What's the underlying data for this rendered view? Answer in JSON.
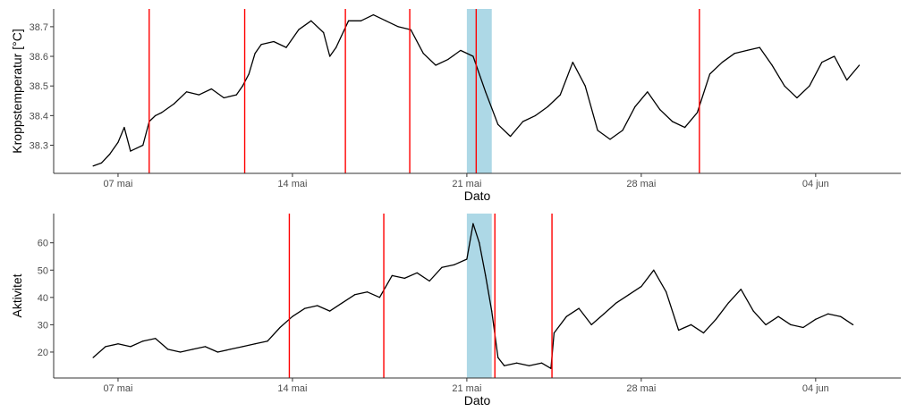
{
  "colors": {
    "series": "#000000",
    "event_line": "#ff0000",
    "highlight": "#add8e6",
    "axis": "#333333",
    "tick_text": "#4d4d4d",
    "background": "#ffffff"
  },
  "chart_data": [
    {
      "type": "line",
      "xlabel": "Dato",
      "ylabel": "Kroppstemperatur [°C]",
      "x_ticks": [
        "2024-05-07",
        "2024-05-14",
        "2024-05-21",
        "2024-05-28",
        "2024-06-04"
      ],
      "x_tick_labels": [
        "07 mai",
        "14 mai",
        "21 mai",
        "28 mai",
        "04 jun"
      ],
      "xlim": [
        "2024-05-04T10:00",
        "2024-06-07T10:00"
      ],
      "y_ticks": [
        38.3,
        38.4,
        38.5,
        38.6,
        38.7
      ],
      "ylim": [
        38.205,
        38.76
      ],
      "grid": false,
      "legend": "none",
      "highlight": [
        "2024-05-21T00:00",
        "2024-05-22T00:00"
      ],
      "event_lines": [
        "2024-05-08T06:00",
        "2024-05-12T02:00",
        "2024-05-16T03:00",
        "2024-05-18T17:00",
        "2024-05-21T09:00",
        "2024-05-30T08:00"
      ],
      "series": [
        {
          "x": [
            "2024-05-06T00:00",
            "2024-05-06T08:00",
            "2024-05-06T16:00",
            "2024-05-07T00:00",
            "2024-05-07T06:00",
            "2024-05-07T12:00",
            "2024-05-07T18:00",
            "2024-05-08T00:00",
            "2024-05-08T06:00",
            "2024-05-08T12:00",
            "2024-05-08T18:00",
            "2024-05-09T06:00",
            "2024-05-09T18:00",
            "2024-05-10T06:00",
            "2024-05-10T18:00",
            "2024-05-11T06:00",
            "2024-05-11T18:00",
            "2024-05-12T00:00",
            "2024-05-12T06:00",
            "2024-05-12T12:00",
            "2024-05-12T18:00",
            "2024-05-13T06:00",
            "2024-05-13T18:00",
            "2024-05-14T06:00",
            "2024-05-14T18:00",
            "2024-05-15T06:00",
            "2024-05-15T12:00",
            "2024-05-15T18:00",
            "2024-05-16T06:00",
            "2024-05-16T18:00",
            "2024-05-17T06:00",
            "2024-05-17T18:00",
            "2024-05-18T06:00",
            "2024-05-18T18:00",
            "2024-05-19T06:00",
            "2024-05-19T18:00",
            "2024-05-20T06:00",
            "2024-05-20T18:00",
            "2024-05-21T06:00",
            "2024-05-21T18:00",
            "2024-05-22T06:00",
            "2024-05-22T18:00",
            "2024-05-23T06:00",
            "2024-05-23T18:00",
            "2024-05-24T06:00",
            "2024-05-24T18:00",
            "2024-05-25T06:00",
            "2024-05-25T18:00",
            "2024-05-26T06:00",
            "2024-05-26T18:00",
            "2024-05-27T06:00",
            "2024-05-27T18:00",
            "2024-05-28T06:00",
            "2024-05-28T18:00",
            "2024-05-29T06:00",
            "2024-05-29T18:00",
            "2024-05-30T06:00",
            "2024-05-30T18:00",
            "2024-05-31T06:00",
            "2024-05-31T18:00",
            "2024-06-01T06:00",
            "2024-06-01T18:00",
            "2024-06-02T06:00",
            "2024-06-02T18:00",
            "2024-06-03T06:00",
            "2024-06-03T18:00",
            "2024-06-04T06:00",
            "2024-06-04T18:00",
            "2024-06-05T06:00",
            "2024-06-05T18:00"
          ],
          "y": [
            38.23,
            38.24,
            38.27,
            38.31,
            38.36,
            38.28,
            38.29,
            38.3,
            38.38,
            38.4,
            38.41,
            38.44,
            38.48,
            38.47,
            38.49,
            38.46,
            38.47,
            38.5,
            38.54,
            38.61,
            38.64,
            38.65,
            38.63,
            38.69,
            38.72,
            38.68,
            38.6,
            38.63,
            38.72,
            38.72,
            38.74,
            38.72,
            38.7,
            38.69,
            38.61,
            38.57,
            38.59,
            38.62,
            38.6,
            38.48,
            38.37,
            38.33,
            38.38,
            38.4,
            38.43,
            38.47,
            38.58,
            38.5,
            38.35,
            38.32,
            38.35,
            38.43,
            38.48,
            38.42,
            38.38,
            38.36,
            38.41,
            38.54,
            38.58,
            38.61,
            38.62,
            38.63,
            38.57,
            38.5,
            38.46,
            38.5,
            38.58,
            38.6,
            38.52,
            38.57
          ]
        }
      ]
    },
    {
      "type": "line",
      "xlabel": "Dato",
      "ylabel": "Aktivitet",
      "x_ticks": [
        "2024-05-07",
        "2024-05-14",
        "2024-05-21",
        "2024-05-28",
        "2024-06-04"
      ],
      "x_tick_labels": [
        "07 mai",
        "14 mai",
        "21 mai",
        "28 mai",
        "04 jun"
      ],
      "xlim": [
        "2024-05-04T10:00",
        "2024-06-07T10:00"
      ],
      "y_ticks": [
        20,
        30,
        40,
        50,
        60
      ],
      "ylim": [
        10.5,
        70.7
      ],
      "grid": false,
      "legend": "none",
      "highlight": [
        "2024-05-21T00:00",
        "2024-05-22T00:00"
      ],
      "event_lines": [
        "2024-05-13T21:00",
        "2024-05-17T16:00",
        "2024-05-22T03:00",
        "2024-05-24T10:00"
      ],
      "series": [
        {
          "x": [
            "2024-05-06T00:00",
            "2024-05-06T12:00",
            "2024-05-07T00:00",
            "2024-05-07T12:00",
            "2024-05-08T00:00",
            "2024-05-08T12:00",
            "2024-05-09T00:00",
            "2024-05-09T12:00",
            "2024-05-10T00:00",
            "2024-05-10T12:00",
            "2024-05-11T00:00",
            "2024-05-11T12:00",
            "2024-05-12T00:00",
            "2024-05-12T12:00",
            "2024-05-13T00:00",
            "2024-05-13T12:00",
            "2024-05-14T00:00",
            "2024-05-14T12:00",
            "2024-05-15T00:00",
            "2024-05-15T12:00",
            "2024-05-16T00:00",
            "2024-05-16T12:00",
            "2024-05-17T00:00",
            "2024-05-17T12:00",
            "2024-05-18T00:00",
            "2024-05-18T12:00",
            "2024-05-19T00:00",
            "2024-05-19T12:00",
            "2024-05-20T00:00",
            "2024-05-20T12:00",
            "2024-05-21T00:00",
            "2024-05-21T06:00",
            "2024-05-21T12:00",
            "2024-05-21T18:00",
            "2024-05-22T00:00",
            "2024-05-22T06:00",
            "2024-05-22T12:00",
            "2024-05-23T00:00",
            "2024-05-23T12:00",
            "2024-05-24T00:00",
            "2024-05-24T09:00",
            "2024-05-24T12:00",
            "2024-05-25T00:00",
            "2024-05-25T12:00",
            "2024-05-26T00:00",
            "2024-05-26T12:00",
            "2024-05-27T00:00",
            "2024-05-27T12:00",
            "2024-05-28T00:00",
            "2024-05-28T12:00",
            "2024-05-29T00:00",
            "2024-05-29T12:00",
            "2024-05-30T00:00",
            "2024-05-30T12:00",
            "2024-05-31T00:00",
            "2024-05-31T12:00",
            "2024-06-01T00:00",
            "2024-06-01T12:00",
            "2024-06-02T00:00",
            "2024-06-02T12:00",
            "2024-06-03T00:00",
            "2024-06-03T12:00",
            "2024-06-04T00:00",
            "2024-06-04T12:00",
            "2024-06-05T00:00",
            "2024-06-05T12:00"
          ],
          "y": [
            18,
            22,
            23,
            22,
            24,
            25,
            21,
            20,
            21,
            22,
            20,
            21,
            22,
            23,
            24,
            29,
            33,
            36,
            37,
            35,
            38,
            41,
            42,
            40,
            48,
            47,
            49,
            46,
            51,
            52,
            54,
            67,
            60,
            48,
            35,
            18,
            15,
            16,
            15,
            16,
            14,
            27,
            33,
            36,
            30,
            34,
            38,
            41,
            44,
            50,
            42,
            28,
            30,
            27,
            32,
            38,
            43,
            35,
            30,
            33,
            30,
            29,
            32,
            34,
            33,
            30
          ]
        }
      ]
    }
  ]
}
